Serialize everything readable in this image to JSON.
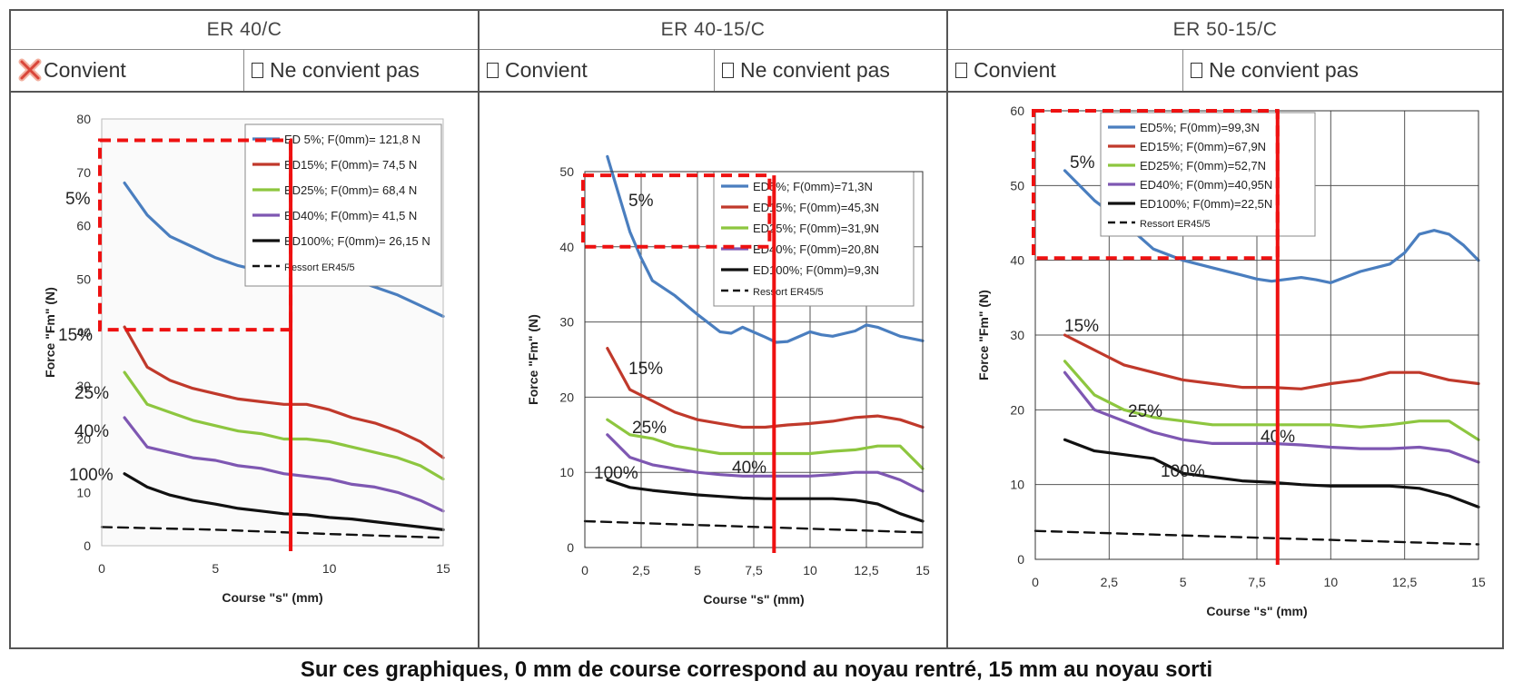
{
  "panels": [
    {
      "title": "ER 40/C",
      "option_yes": "Convient",
      "option_no": "Ne convient pas",
      "checked": "yes"
    },
    {
      "title": "ER 40-15/C",
      "option_yes": "Convient",
      "option_no": "Ne convient pas",
      "checked": "none"
    },
    {
      "title": "ER 50-15/C",
      "option_yes": "Convient",
      "option_no": "Ne convient pas",
      "checked": "none"
    }
  ],
  "caption": "Sur ces graphiques, 0 mm de course correspond au noyau rentré, 15 mm au noyau sorti",
  "colors": {
    "ed5": "#4a7ebf",
    "ed15": "#c0392b",
    "ed25": "#8dc63f",
    "ed40": "#7e57b2",
    "ed100": "#111111",
    "ressort": "#111111",
    "annotation": "#ee1111"
  },
  "chart_data": [
    {
      "type": "line",
      "title": "",
      "xlabel": "Course \"s\" (mm)",
      "ylabel": "Force \"Fm\" (N)",
      "xlim": [
        0,
        15
      ],
      "ylim": [
        0,
        80
      ],
      "x_ticks": [
        "0",
        "5",
        "10",
        "15"
      ],
      "y_ticks": [
        "0",
        "10",
        "20",
        "30",
        "40",
        "50",
        "60",
        "70",
        "80"
      ],
      "grid": false,
      "legend_position": "top-right",
      "series": [
        {
          "name": "ED 5%; F(0mm)= 121,8 N",
          "label": "5%",
          "color_key": "ed5",
          "x": [
            1,
            2,
            3,
            4,
            5,
            6,
            7,
            8,
            9,
            10,
            11,
            12,
            13,
            14,
            15
          ],
          "y": [
            68,
            62,
            58,
            56,
            54,
            52.5,
            51.5,
            51,
            50.5,
            50.3,
            50,
            48.5,
            47,
            45,
            43
          ]
        },
        {
          "name": "ED15%; F(0mm)= 74,5 N",
          "label": "15%",
          "color_key": "ed15",
          "x": [
            1,
            2,
            3,
            4,
            5,
            6,
            7,
            8,
            9,
            10,
            11,
            12,
            13,
            14,
            15
          ],
          "y": [
            41,
            33.5,
            31,
            29.5,
            28.5,
            27.5,
            27,
            26.5,
            26.5,
            25.5,
            24,
            23,
            21.5,
            19.5,
            16.5
          ]
        },
        {
          "name": "ED25%; F(0mm)= 68,4 N",
          "label": "25%",
          "color_key": "ed25",
          "x": [
            1,
            2,
            3,
            4,
            5,
            6,
            7,
            8,
            9,
            10,
            11,
            12,
            13,
            14,
            15
          ],
          "y": [
            32.5,
            26.5,
            25,
            23.5,
            22.5,
            21.5,
            21,
            20,
            20,
            19.5,
            18.5,
            17.5,
            16.5,
            15,
            12.5
          ]
        },
        {
          "name": "ED40%; F(0mm)= 41,5 N",
          "label": "40%",
          "color_key": "ed40",
          "x": [
            1,
            2,
            3,
            4,
            5,
            6,
            7,
            8,
            9,
            10,
            11,
            12,
            13,
            14,
            15
          ],
          "y": [
            24,
            18.5,
            17.5,
            16.5,
            16,
            15,
            14.5,
            13.5,
            13,
            12.5,
            11.5,
            11,
            10,
            8.5,
            6.5
          ]
        },
        {
          "name": "ED100%; F(0mm)= 26,15 N",
          "label": "100%",
          "color_key": "ed100",
          "x": [
            1,
            2,
            3,
            4,
            5,
            6,
            7,
            8,
            9,
            10,
            11,
            12,
            13,
            14,
            15
          ],
          "y": [
            13.5,
            11,
            9.5,
            8.5,
            7.8,
            7,
            6.5,
            6,
            5.8,
            5.3,
            5,
            4.5,
            4,
            3.5,
            3
          ]
        },
        {
          "name": "Ressort ER45/5",
          "label": "",
          "color_key": "ressort",
          "dashed": true,
          "x": [
            0,
            5,
            10,
            15
          ],
          "y": [
            3.5,
            3,
            2.2,
            1.5
          ]
        }
      ],
      "annotations": {
        "box_x": [
          0,
          8.3
        ],
        "box_y": [
          40.5,
          76
        ],
        "line_x": 8.3
      }
    },
    {
      "type": "line",
      "title": "",
      "xlabel": "Course \"s\" (mm)",
      "ylabel": "Force \"Fm\" (N)",
      "xlim": [
        0,
        15
      ],
      "ylim": [
        0,
        50
      ],
      "x_ticks": [
        "0",
        "2,5",
        "5",
        "7,5",
        "10",
        "12,5",
        "15"
      ],
      "y_ticks": [
        "0",
        "10",
        "20",
        "30",
        "40",
        "50"
      ],
      "grid": true,
      "legend_position": "top-right",
      "series": [
        {
          "name": "ED5%; F(0mm)=71,3N",
          "label": "5%",
          "color_key": "ed5",
          "x": [
            1,
            1.5,
            2,
            2.5,
            3,
            3.5,
            4,
            5,
            6,
            6.5,
            7,
            8,
            8.5,
            9,
            10,
            10.5,
            11,
            12,
            12.5,
            13,
            14,
            15
          ],
          "y": [
            52,
            47,
            42,
            38.5,
            35.5,
            34.5,
            33.5,
            31,
            28.7,
            28.5,
            29.3,
            28,
            27.3,
            27.4,
            28.7,
            28.3,
            28.1,
            28.8,
            29.6,
            29.3,
            28.1,
            27.5
          ]
        },
        {
          "name": "ED15%; F(0mm)=45,3N",
          "label": "15%",
          "color_key": "ed15",
          "x": [
            1,
            2,
            3,
            4,
            5,
            6,
            7,
            8,
            9,
            10,
            11,
            12,
            13,
            14,
            15
          ],
          "y": [
            26.5,
            21,
            19.5,
            18,
            17,
            16.5,
            16,
            16,
            16.3,
            16.5,
            16.8,
            17.3,
            17.5,
            17,
            16
          ]
        },
        {
          "name": "ED25%; F(0mm)=31,9N",
          "label": "25%",
          "color_key": "ed25",
          "x": [
            1,
            2,
            3,
            4,
            5,
            6,
            7,
            8,
            9,
            10,
            11,
            12,
            13,
            14,
            15
          ],
          "y": [
            17,
            15,
            14.5,
            13.5,
            13,
            12.5,
            12.5,
            12.5,
            12.5,
            12.5,
            12.8,
            13,
            13.5,
            13.5,
            10.5
          ]
        },
        {
          "name": "ED40%; F(0mm)=20,8N",
          "label": "40%",
          "color_key": "ed40",
          "x": [
            1,
            2,
            3,
            4,
            5,
            6,
            7,
            8,
            9,
            10,
            11,
            12,
            13,
            14,
            15
          ],
          "y": [
            15,
            12,
            11,
            10.5,
            10,
            9.7,
            9.5,
            9.5,
            9.5,
            9.5,
            9.7,
            10,
            10,
            9,
            7.5
          ]
        },
        {
          "name": "ED100%; F(0mm)=9,3N",
          "label": "100%",
          "color_key": "ed100",
          "x": [
            1,
            2,
            3,
            4,
            5,
            6,
            7,
            8,
            9,
            10,
            11,
            12,
            13,
            14,
            15
          ],
          "y": [
            9,
            8,
            7.6,
            7.3,
            7,
            6.8,
            6.6,
            6.5,
            6.5,
            6.5,
            6.5,
            6.3,
            5.8,
            4.5,
            3.5
          ]
        },
        {
          "name": "Ressort ER45/5",
          "label": "",
          "color_key": "ressort",
          "dashed": true,
          "x": [
            0,
            5,
            10,
            15
          ],
          "y": [
            3.5,
            3,
            2.5,
            2
          ]
        }
      ],
      "annotations": {
        "box_x": [
          0,
          8.2
        ],
        "box_y": [
          40,
          49.5
        ],
        "line_x": 8.4
      }
    },
    {
      "type": "line",
      "title": "",
      "xlabel": "Course \"s\" (mm)",
      "ylabel": "Force \"Fm\" (N)",
      "xlim": [
        0,
        15
      ],
      "ylim": [
        0,
        60
      ],
      "x_ticks": [
        "0",
        "2,5",
        "5",
        "7,5",
        "10",
        "12,5",
        "15"
      ],
      "y_ticks": [
        "0",
        "10",
        "20",
        "30",
        "40",
        "50",
        "60"
      ],
      "grid": true,
      "legend_position": "top-right",
      "series": [
        {
          "name": "ED5%; F(0mm)=99,3N",
          "label": "5%",
          "color_key": "ed5",
          "x": [
            1,
            2,
            3,
            4,
            5,
            6,
            7,
            7.5,
            8,
            9,
            9.5,
            10,
            11,
            12,
            12.5,
            13,
            13.5,
            14,
            14.5,
            15
          ],
          "y": [
            52,
            48,
            45,
            41.5,
            40,
            39,
            38,
            37.5,
            37.2,
            37.7,
            37.4,
            37,
            38.5,
            39.5,
            41,
            43.5,
            44,
            43.5,
            42,
            40
          ]
        },
        {
          "name": "ED15%; F(0mm)=67,9N",
          "label": "15%",
          "color_key": "ed15",
          "x": [
            1,
            2,
            3,
            4,
            5,
            6,
            7,
            8,
            9,
            10,
            11,
            12,
            13,
            14,
            15
          ],
          "y": [
            30,
            28,
            26,
            25,
            24,
            23.5,
            23,
            23,
            22.8,
            23.5,
            24,
            25,
            25,
            24,
            23.5
          ]
        },
        {
          "name": "ED25%; F(0mm)=52,7N",
          "label": "25%",
          "color_key": "ed25",
          "x": [
            1,
            2,
            3,
            4,
            5,
            6,
            7,
            8,
            9,
            10,
            11,
            12,
            13,
            14,
            15
          ],
          "y": [
            26.5,
            22,
            20,
            19,
            18.5,
            18,
            18,
            18,
            18,
            18,
            17.7,
            18,
            18.5,
            18.5,
            16
          ]
        },
        {
          "name": "ED40%; F(0mm)=40,95N",
          "label": "40%",
          "color_key": "ed40",
          "x": [
            1,
            2,
            3,
            4,
            5,
            6,
            7,
            8,
            9,
            10,
            11,
            12,
            13,
            14,
            15
          ],
          "y": [
            25,
            20,
            18.5,
            17,
            16,
            15.5,
            15.5,
            15.5,
            15.3,
            15,
            14.8,
            14.8,
            15,
            14.5,
            13
          ]
        },
        {
          "name": "ED100%; F(0mm)=22,5N",
          "label": "100%",
          "color_key": "ed100",
          "x": [
            1,
            2,
            3,
            4,
            5,
            6,
            7,
            8,
            9,
            10,
            11,
            12,
            13,
            14,
            15
          ],
          "y": [
            16,
            14.5,
            14,
            13.5,
            11.5,
            11,
            10.5,
            10.3,
            10,
            9.8,
            9.8,
            9.8,
            9.5,
            8.5,
            7
          ]
        },
        {
          "name": "Ressort ER45/5",
          "label": "",
          "color_key": "ressort",
          "dashed": true,
          "x": [
            0,
            5,
            10,
            15
          ],
          "y": [
            3.8,
            3.2,
            2.6,
            2
          ]
        }
      ],
      "annotations": {
        "box_x": [
          0,
          8.2
        ],
        "box_y": [
          40.3,
          60
        ],
        "line_x": 8.2
      }
    }
  ]
}
